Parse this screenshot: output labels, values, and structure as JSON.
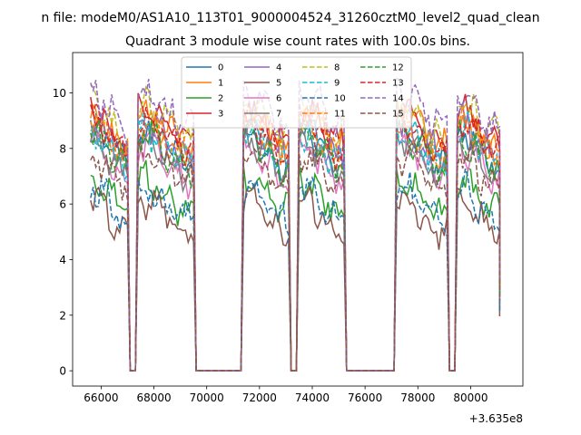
{
  "chart_data": {
    "type": "line",
    "suptitle": "n file: modeM0/AS1A10_113T01_9000004524_31260cztM0_level2_quad_clean",
    "title": "Quadrant 3 module wise count rates with 100.0s bins.",
    "xlabel": "",
    "ylabel": "",
    "x_offset_label": "+3.635e8",
    "x_offset": 363500000,
    "xlim": [
      64920,
      81980
    ],
    "ylim": [
      -0.55,
      11.45
    ],
    "x_ticks": [
      66000,
      68000,
      70000,
      72000,
      74000,
      76000,
      78000,
      80000
    ],
    "x_tick_labels": [
      "66000",
      "68000",
      "70000",
      "72000",
      "74000",
      "76000",
      "78000",
      "80000"
    ],
    "y_ticks": [
      0,
      2,
      4,
      6,
      8,
      10
    ],
    "y_tick_labels": [
      "0",
      "2",
      "4",
      "6",
      "8",
      "10"
    ],
    "grid": false,
    "legend": {
      "location": "upper center",
      "columns": 4
    },
    "segments": [
      {
        "x_start": 65600,
        "x_end": 67000,
        "x_step": 100
      },
      {
        "x_start": 67400,
        "x_end": 69500,
        "x_step": 100
      },
      {
        "x_start": 71400,
        "x_end": 73100,
        "x_step": 100
      },
      {
        "x_start": 73500,
        "x_end": 75200,
        "x_step": 100
      },
      {
        "x_start": 77200,
        "x_end": 79100,
        "x_step": 100
      },
      {
        "x_start": 79500,
        "x_end": 81100,
        "x_step": 100
      }
    ],
    "zero_ranges": [
      {
        "x_start": 67100,
        "x_end": 67300
      },
      {
        "x_start": 69600,
        "x_end": 71300
      },
      {
        "x_start": 73200,
        "x_end": 73400
      },
      {
        "x_start": 75300,
        "x_end": 77100
      },
      {
        "x_start": 79200,
        "x_end": 79400
      }
    ],
    "series": [
      {
        "name": "0",
        "color": "#1f77b4",
        "dash": "solid",
        "level": 8.0
      },
      {
        "name": "1",
        "color": "#ff7f0e",
        "dash": "solid",
        "level": 8.6
      },
      {
        "name": "2",
        "color": "#2ca02c",
        "dash": "solid",
        "level": 6.3
      },
      {
        "name": "3",
        "color": "#d62728",
        "dash": "solid",
        "level": 8.8
      },
      {
        "name": "4",
        "color": "#9467bd",
        "dash": "solid",
        "level": 8.3
      },
      {
        "name": "5",
        "color": "#8c564b",
        "dash": "solid",
        "level": 5.6
      },
      {
        "name": "6",
        "color": "#e377c2",
        "dash": "solid",
        "level": 7.5
      },
      {
        "name": "7",
        "color": "#7f7f7f",
        "dash": "solid",
        "level": 7.7
      },
      {
        "name": "8",
        "color": "#bcbd22",
        "dash": "dashed",
        "level": 9.0
      },
      {
        "name": "9",
        "color": "#17becf",
        "dash": "dashed",
        "level": 8.1
      },
      {
        "name": "10",
        "color": "#1f77b4",
        "dash": "dashed",
        "level": 6.0
      },
      {
        "name": "11",
        "color": "#ff7f0e",
        "dash": "dashed",
        "level": 8.4
      },
      {
        "name": "12",
        "color": "#2ca02c",
        "dash": "dashed",
        "level": 7.9
      },
      {
        "name": "13",
        "color": "#d62728",
        "dash": "dashed",
        "level": 8.5
      },
      {
        "name": "14",
        "color": "#9467bd",
        "dash": "dashed",
        "level": 9.4
      },
      {
        "name": "15",
        "color": "#8c564b",
        "dash": "dashed",
        "level": 7.2
      }
    ]
  }
}
